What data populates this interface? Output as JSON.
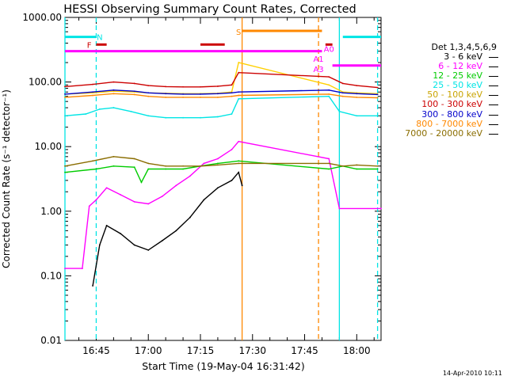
{
  "chart_data": {
    "type": "line",
    "title": "HESSI Observing Summary Count Rates, Corrected",
    "xlabel": "Start Time (19-May-04 16:31:42)",
    "ylabel": "Corrected Count Rate (s⁻¹ detector⁻¹)",
    "yscale": "log",
    "ylim": [
      0.01,
      1000
    ],
    "xlim_minutes": [
      "16:36",
      "18:07"
    ],
    "x_ticks": [
      "16:45",
      "17:00",
      "17:15",
      "17:30",
      "17:45",
      "18:00"
    ],
    "y_ticks": [
      "1000.00",
      "100.00",
      "10.00",
      "1.00",
      "0.10",
      "0.01"
    ],
    "grid": false,
    "legend_placement": "right",
    "legend_title": "Det 1,3,4,5,6,9",
    "series": [
      {
        "name": "3 - 6 keV",
        "color": "#000000",
        "x": [
          "16:44",
          "16:46",
          "16:48",
          "16:52",
          "16:56",
          "17:00",
          "17:04",
          "17:08",
          "17:12",
          "17:16",
          "17:20",
          "17:24",
          "17:26",
          "17:27"
        ],
        "values": [
          0.07,
          0.3,
          0.6,
          0.45,
          0.3,
          0.25,
          0.35,
          0.5,
          0.8,
          1.5,
          2.3,
          3.0,
          4.0,
          2.5
        ]
      },
      {
        "name": "6 - 12 keV",
        "color": "#ff00ff",
        "x": [
          "16:36",
          "16:41",
          "16:43",
          "16:45",
          "16:48",
          "16:52",
          "16:56",
          "17:00",
          "17:04",
          "17:08",
          "17:12",
          "17:16",
          "17:20",
          "17:24",
          "17:26",
          "17:52",
          "17:55",
          "18:07"
        ],
        "values": [
          0.13,
          0.13,
          1.2,
          1.5,
          2.3,
          1.8,
          1.4,
          1.3,
          1.7,
          2.5,
          3.5,
          5.5,
          6.5,
          9.0,
          12.0,
          6.5,
          1.1,
          1.1
        ]
      },
      {
        "name": "12 - 25 keV",
        "color": "#00cc00",
        "x": [
          "16:36",
          "16:45",
          "16:50",
          "16:56",
          "16:58",
          "17:00",
          "17:05",
          "17:10",
          "17:15",
          "17:20",
          "17:26",
          "17:52",
          "17:56",
          "18:00",
          "18:06"
        ],
        "values": [
          4.0,
          4.5,
          5.0,
          4.8,
          2.8,
          4.5,
          4.5,
          4.5,
          5.0,
          5.5,
          6.0,
          4.5,
          5.0,
          4.5,
          4.5
        ]
      },
      {
        "name": "25 - 50 keV",
        "color": "#00e5e5",
        "x": [
          "16:36",
          "16:42",
          "16:46",
          "16:50",
          "16:55",
          "17:00",
          "17:05",
          "17:10",
          "17:15",
          "17:20",
          "17:24",
          "17:26",
          "17:52",
          "17:55",
          "18:00",
          "18:06"
        ],
        "values": [
          30,
          32,
          38,
          40,
          35,
          30,
          28,
          28,
          28,
          29,
          32,
          55,
          60,
          35,
          30,
          30
        ]
      },
      {
        "name": "50 - 100 keV",
        "color": "#ffd000",
        "x": [
          "16:36",
          "16:44",
          "16:50",
          "16:56",
          "17:00",
          "17:05",
          "17:10",
          "17:15",
          "17:20",
          "17:24",
          "17:26",
          "17:52",
          "17:56",
          "18:00",
          "18:06"
        ],
        "values": [
          65,
          68,
          72,
          70,
          68,
          67,
          66,
          66,
          67,
          70,
          200,
          90,
          70,
          68,
          66
        ]
      },
      {
        "name": "100 - 300 keV",
        "color": "#cc0000",
        "x": [
          "16:36",
          "16:44",
          "16:50",
          "16:56",
          "17:00",
          "17:05",
          "17:10",
          "17:15",
          "17:20",
          "17:24",
          "17:26",
          "17:52",
          "17:56",
          "18:00",
          "18:06"
        ],
        "values": [
          85,
          92,
          100,
          95,
          88,
          85,
          84,
          84,
          86,
          90,
          140,
          120,
          95,
          88,
          82
        ]
      },
      {
        "name": "300 - 800 keV",
        "color": "#0000cc",
        "x": [
          "16:36",
          "16:44",
          "16:50",
          "16:56",
          "17:00",
          "17:05",
          "17:10",
          "17:15",
          "17:20",
          "17:24",
          "17:26",
          "17:52",
          "17:56",
          "18:00",
          "18:06"
        ],
        "values": [
          65,
          70,
          75,
          72,
          68,
          66,
          65,
          65,
          66,
          68,
          70,
          75,
          68,
          66,
          64
        ]
      },
      {
        "name": "800 - 7000 keV",
        "color": "#ff8800",
        "x": [
          "16:36",
          "16:44",
          "16:50",
          "16:56",
          "17:00",
          "17:05",
          "17:10",
          "17:15",
          "17:20",
          "17:24",
          "17:26",
          "17:52",
          "17:56",
          "18:00",
          "18:06"
        ],
        "values": [
          58,
          62,
          66,
          64,
          60,
          58,
          58,
          58,
          58,
          60,
          62,
          65,
          60,
          58,
          57
        ]
      },
      {
        "name": "7000 - 20000 keV",
        "color": "#8a6d00",
        "x": [
          "16:36",
          "16:44",
          "16:50",
          "16:56",
          "17:00",
          "17:05",
          "17:10",
          "17:15",
          "17:20",
          "17:26",
          "17:52",
          "17:56",
          "18:00",
          "18:06"
        ],
        "values": [
          5.0,
          6.0,
          7.0,
          6.5,
          5.5,
          5.0,
          5.0,
          5.0,
          5.2,
          5.5,
          5.5,
          5.0,
          5.2,
          5.0
        ]
      }
    ],
    "annotations": [
      {
        "text": "N",
        "x": "16:46",
        "y": 500,
        "color": "#00e5e5"
      },
      {
        "text": "F",
        "x": "16:43",
        "y": 380,
        "color": "#cc0000"
      },
      {
        "text": "S",
        "x": "17:26",
        "y": 600,
        "color": "#ff8800"
      },
      {
        "text": "A1",
        "x": "17:49",
        "y": 230,
        "color": "#ff00ff"
      },
      {
        "text": "A3",
        "x": "17:49",
        "y": 160,
        "color": "#ff00ff"
      },
      {
        "text": "A0",
        "x": "17:52",
        "y": 330,
        "color": "#ff00ff"
      }
    ],
    "flag_bars": [
      {
        "name": "night",
        "color": "#00e5e5",
        "y": 500,
        "from": [
          "16:36",
          "17:56"
        ],
        "to": [
          "16:45",
          "18:07"
        ]
      },
      {
        "name": "flare",
        "color": "#cc0000",
        "y": 380,
        "from": [
          "16:45",
          "17:15",
          "17:51"
        ],
        "to": [
          "16:48",
          "17:22",
          "17:53"
        ]
      },
      {
        "name": "saa",
        "color": "#ff8800",
        "y": 620,
        "from": [
          "17:27"
        ],
        "to": [
          "17:50"
        ]
      },
      {
        "name": "attenuator",
        "color": "#ff00ff",
        "y": 300,
        "from": [
          "16:36"
        ],
        "to": [
          "17:50"
        ]
      },
      {
        "name": "attenuator-2",
        "color": "#ff00ff",
        "y": 180,
        "from": [
          "17:53"
        ],
        "to": [
          "18:07"
        ]
      }
    ],
    "vertical_markers": [
      {
        "x": "16:36",
        "color": "#00e5e5",
        "style": "solid"
      },
      {
        "x": "16:45",
        "color": "#00e5e5",
        "style": "dashed"
      },
      {
        "x": "17:27",
        "color": "#ff8800",
        "style": "solid"
      },
      {
        "x": "17:49",
        "color": "#ff8800",
        "style": "dashed"
      },
      {
        "x": "17:55",
        "color": "#00e5e5",
        "style": "solid"
      },
      {
        "x": "18:06",
        "color": "#00e5e5",
        "style": "dashed"
      }
    ]
  },
  "timestamp": "14-Apr-2010 10:11"
}
